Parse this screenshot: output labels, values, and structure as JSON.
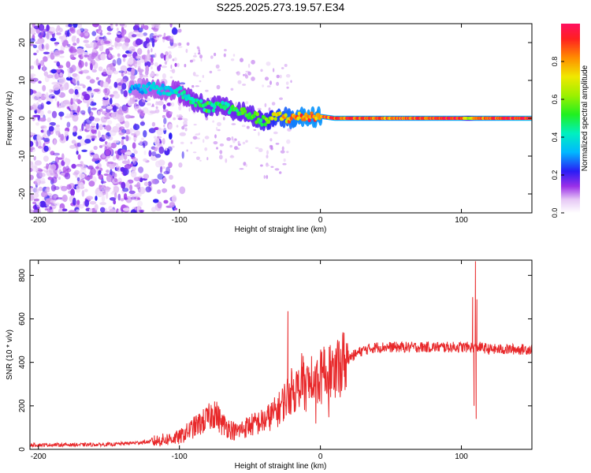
{
  "page_title": "S225.2025.273.19.57.E34",
  "chart_data": [
    {
      "type": "heatmap",
      "name": "spectrogram",
      "xlabel": "Height of straight line (km)",
      "ylabel": "Frequency (Hz)",
      "xlim": [
        -206,
        150
      ],
      "ylim": [
        -25,
        25
      ],
      "xticks": [
        -200,
        -100,
        0,
        100
      ],
      "yticks": [
        -20,
        -10,
        0,
        10,
        20
      ],
      "colorbar": {
        "label": "Normalized spectral amplitude",
        "range": [
          0,
          1
        ],
        "ticks": [
          0.0,
          0.2,
          0.4,
          0.6,
          0.8
        ],
        "tick_labels": [
          "0.0",
          "0.2",
          "0.4",
          "0.6",
          "0.8"
        ]
      },
      "ridge": {
        "description_x": [
          -135,
          -120,
          -110,
          -100,
          -90,
          -80,
          -70,
          -60,
          -50,
          -40,
          -30,
          -20,
          -10,
          0,
          10,
          50,
          100,
          105,
          110,
          150
        ],
        "freq_hz": [
          7.5,
          8,
          7.5,
          7,
          4.5,
          3,
          3.5,
          2,
          1,
          -1,
          0.5,
          0,
          0.5,
          0.5,
          0,
          0,
          0,
          0,
          0,
          0
        ],
        "amplitude": [
          0.3,
          0.35,
          0.35,
          0.4,
          0.45,
          0.5,
          0.45,
          0.5,
          0.5,
          0.55,
          0.7,
          0.8,
          0.85,
          0.85,
          0.9,
          0.85,
          0.9,
          0.6,
          0.85,
          0.95
        ]
      },
      "noise_region_x": [
        -206,
        -120
      ]
    },
    {
      "type": "line",
      "name": "snr",
      "xlabel": "Height of straight line (km)",
      "ylabel": "SNR (10 * v/v)",
      "xlim": [
        -206,
        150
      ],
      "ylim": [
        0,
        870
      ],
      "xticks": [
        -200,
        -100,
        0,
        100
      ],
      "yticks": [
        0,
        200,
        400,
        600,
        800
      ],
      "color": "#e8282a",
      "trend": {
        "x": [
          -206,
          -150,
          -120,
          -100,
          -90,
          -80,
          -75,
          -70,
          -60,
          -50,
          -40,
          -30,
          -25,
          -22,
          -20,
          -10,
          0,
          10,
          20,
          30,
          40,
          60,
          80,
          100,
          105,
          108,
          110,
          113,
          120,
          150
        ],
        "y": [
          20,
          22,
          35,
          55,
          100,
          140,
          170,
          120,
          80,
          110,
          130,
          180,
          230,
          260,
          270,
          290,
          330,
          370,
          420,
          455,
          470,
          470,
          470,
          470,
          470,
          470,
          470,
          470,
          460,
          460
        ]
      },
      "spikes": [
        {
          "x": -75,
          "y": 220
        },
        {
          "x": -23,
          "y": 635
        },
        {
          "x": 108,
          "y": 700
        },
        {
          "x": 109,
          "y": 200
        },
        {
          "x": 110,
          "y": 865
        },
        {
          "x": 110.5,
          "y": 140
        },
        {
          "x": 111,
          "y": 690
        }
      ]
    }
  ]
}
